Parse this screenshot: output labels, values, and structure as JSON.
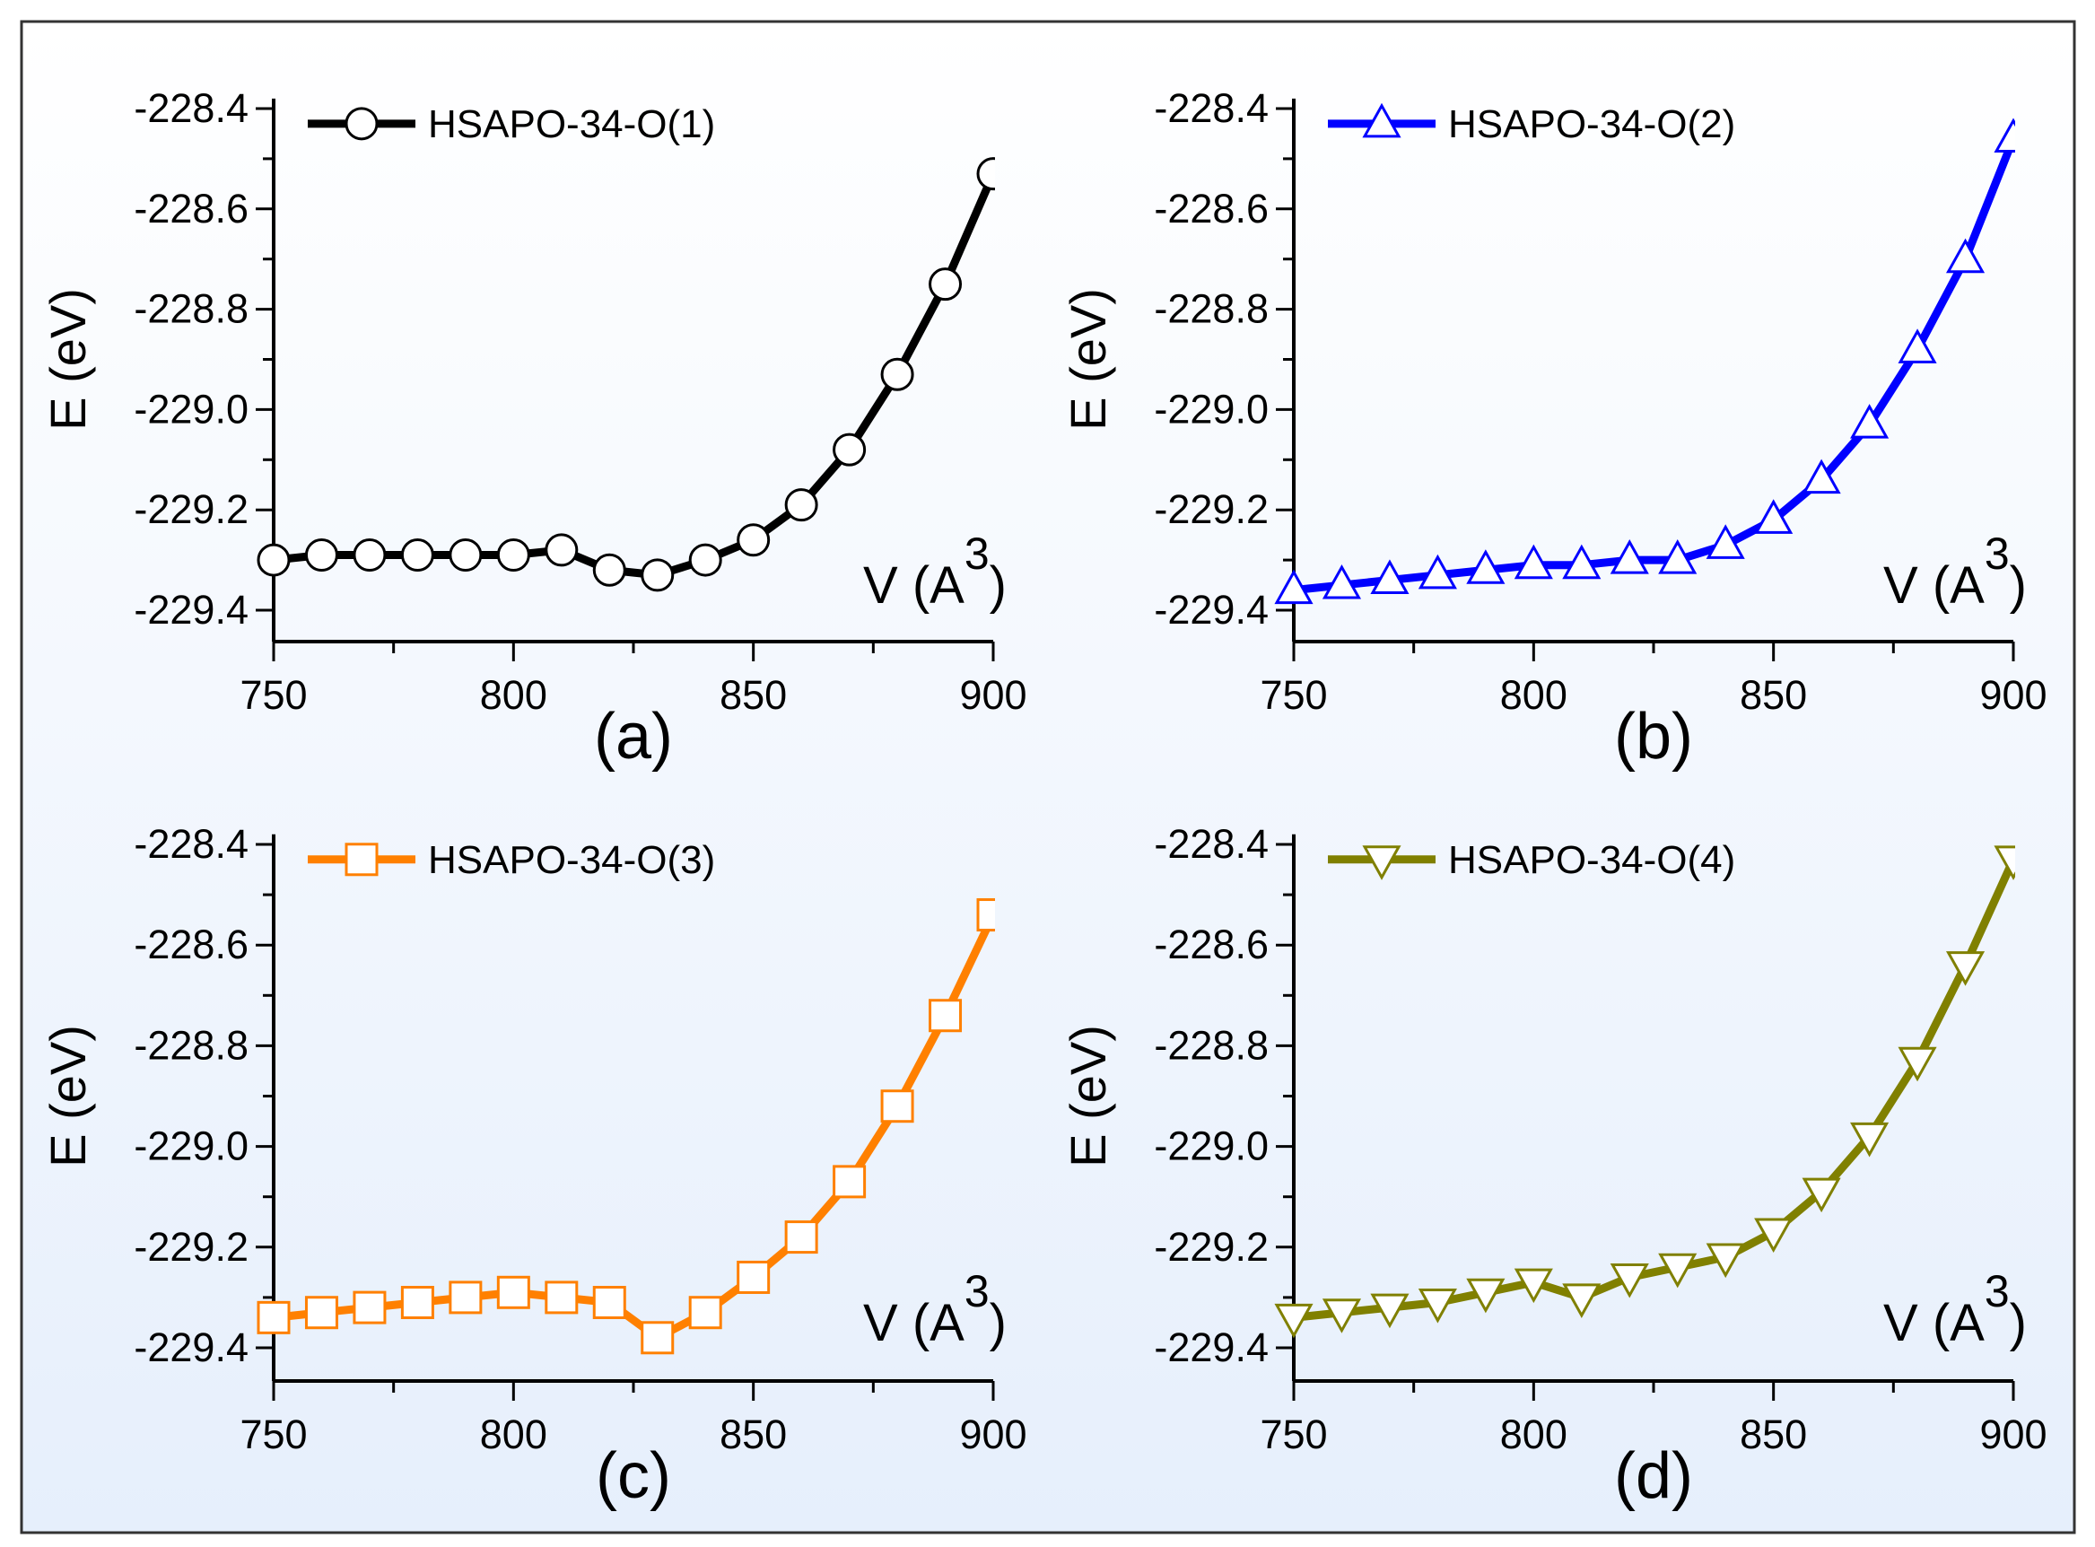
{
  "chart_data": [
    {
      "type": "line",
      "panel_label": "(a)",
      "xlabel": "V (A",
      "xlabel_sup": "3",
      "xlabel_close": ")",
      "ylabel": "E (eV)",
      "legend": "HSAPO-34-O(1)",
      "legend_placement": "top-left",
      "marker": "circle",
      "color": "#000000",
      "xlim": [
        750,
        900
      ],
      "ylim": [
        -229.45,
        -228.38
      ],
      "xticks": [
        "750",
        "800",
        "850",
        "900"
      ],
      "yticks": [
        "-228.4",
        "-228.6",
        "-228.8",
        "-229.0",
        "-229.2",
        "-229.4"
      ],
      "x": [
        750,
        760,
        770,
        780,
        790,
        800,
        810,
        820,
        830,
        840,
        850,
        860,
        870,
        880,
        890,
        900
      ],
      "y": [
        -229.3,
        -229.29,
        -229.29,
        -229.29,
        -229.29,
        -229.29,
        -229.28,
        -229.32,
        -229.33,
        -229.3,
        -229.26,
        -229.19,
        -229.08,
        -228.93,
        -228.75,
        -228.53
      ]
    },
    {
      "type": "line",
      "panel_label": "(b)",
      "xlabel": "V (A",
      "xlabel_sup": "3",
      "xlabel_close": ")",
      "ylabel": "E (eV)",
      "legend": "HSAPO-34-O(2)",
      "legend_placement": "top-left",
      "marker": "triangle-up",
      "color": "#0000ff",
      "xlim": [
        750,
        900
      ],
      "ylim": [
        -229.45,
        -228.38
      ],
      "xticks": [
        "750",
        "800",
        "850",
        "900"
      ],
      "yticks": [
        "-228.4",
        "-228.6",
        "-228.8",
        "-229.0",
        "-229.2",
        "-229.4"
      ],
      "x": [
        750,
        760,
        770,
        780,
        790,
        800,
        810,
        820,
        830,
        840,
        850,
        860,
        870,
        880,
        890,
        900
      ],
      "y": [
        -229.36,
        -229.35,
        -229.34,
        -229.33,
        -229.32,
        -229.31,
        -229.31,
        -229.3,
        -229.3,
        -229.27,
        -229.22,
        -229.14,
        -229.03,
        -228.88,
        -228.7,
        -228.46
      ]
    },
    {
      "type": "line",
      "panel_label": "(c)",
      "xlabel": "V (A",
      "xlabel_sup": "3",
      "xlabel_close": ")",
      "ylabel": "E (eV)",
      "legend": "HSAPO-34-O(3)",
      "legend_placement": "top-left",
      "marker": "square",
      "color": "#ff8000",
      "xlim": [
        750,
        900
      ],
      "ylim": [
        -229.45,
        -228.38
      ],
      "xticks": [
        "750",
        "800",
        "850",
        "900"
      ],
      "yticks": [
        "-228.4",
        "-228.6",
        "-228.8",
        "-229.0",
        "-229.2",
        "-229.4"
      ],
      "x": [
        750,
        760,
        770,
        780,
        790,
        800,
        810,
        820,
        830,
        840,
        850,
        860,
        870,
        880,
        890,
        900
      ],
      "y": [
        -229.34,
        -229.33,
        -229.32,
        -229.31,
        -229.3,
        -229.29,
        -229.3,
        -229.31,
        -229.38,
        -229.33,
        -229.26,
        -229.18,
        -229.07,
        -228.92,
        -228.74,
        -228.54
      ]
    },
    {
      "type": "line",
      "panel_label": "(d)",
      "xlabel": "V (A",
      "xlabel_sup": "3",
      "xlabel_close": ")",
      "ylabel": "E (eV)",
      "legend": "HSAPO-34-O(4)",
      "legend_placement": "top-left",
      "marker": "triangle-down",
      "color": "#808000",
      "xlim": [
        750,
        900
      ],
      "ylim": [
        -229.45,
        -228.38
      ],
      "xticks": [
        "750",
        "800",
        "850",
        "900"
      ],
      "yticks": [
        "-228.4",
        "-228.6",
        "-228.8",
        "-229.0",
        "-229.2",
        "-229.4"
      ],
      "x": [
        750,
        760,
        770,
        780,
        790,
        800,
        810,
        820,
        830,
        840,
        850,
        860,
        870,
        880,
        890,
        900
      ],
      "y": [
        -229.34,
        -229.33,
        -229.32,
        -229.31,
        -229.29,
        -229.27,
        -229.3,
        -229.26,
        -229.24,
        -229.22,
        -229.17,
        -229.09,
        -228.98,
        -228.83,
        -228.64,
        -228.43
      ]
    }
  ]
}
